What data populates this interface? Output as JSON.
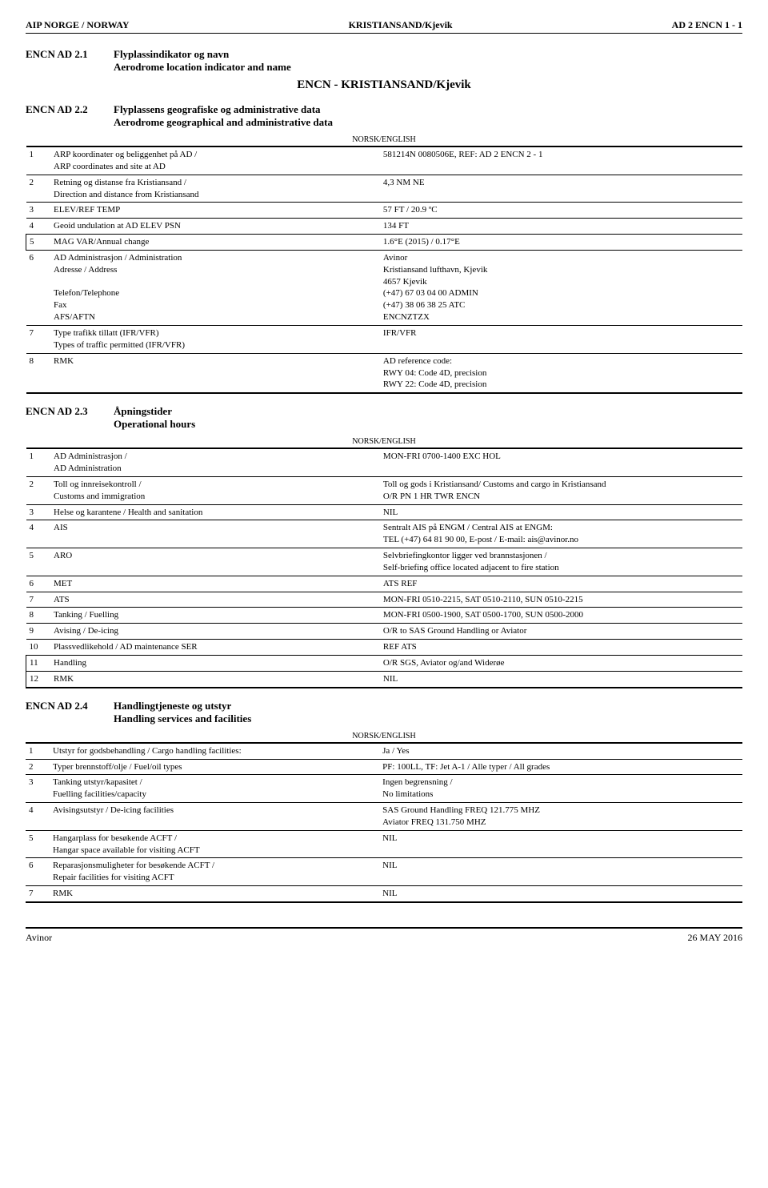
{
  "header": {
    "left": "AIP NORGE / NORWAY",
    "center": "KRISTIANSAND/Kjevik",
    "right": "AD 2 ENCN 1 - 1"
  },
  "norsk": "NORSK/ENGLISH",
  "s21": {
    "num": "ENCN AD 2.1",
    "t1": "Flyplassindikator og navn",
    "t2": "Aerodrome location indicator and name",
    "big": "ENCN - KRISTIANSAND/Kjevik"
  },
  "s22": {
    "num": "ENCN AD 2.2",
    "t1": "Flyplassens geografiske og administrative data",
    "t2": "Aerodrome geographical and administrative data",
    "rows": [
      {
        "n": "1",
        "l": "ARP koordinater og beliggenhet på AD /\nARP coordinates and site at AD",
        "r": "581214N 0080506E, REF: AD 2 ENCN 2 - 1"
      },
      {
        "n": "2",
        "l": "Retning og distanse fra Kristiansand /\nDirection and distance from Kristiansand",
        "r": "4,3 NM NE"
      },
      {
        "n": "3",
        "l": "ELEV/REF TEMP",
        "r": "57 FT / 20.9 ºC"
      },
      {
        "n": "4",
        "l": "Geoid undulation at AD ELEV PSN",
        "r": "134 FT"
      },
      {
        "n": "5",
        "l": "MAG VAR/Annual change",
        "r": "1.6°E (2015) / 0.17°E",
        "chg": true
      },
      {
        "n": "6",
        "l": "AD Administrasjon / Administration\nAdresse / Address\n\nTelefon/Telephone\nFax\nAFS/AFTN",
        "r": "Avinor\nKristiansand lufthavn, Kjevik\n4657 Kjevik\n(+47) 67 03 04 00 ADMIN\n(+47) 38 06 38 25 ATC\nENCNZTZX"
      },
      {
        "n": "7",
        "l": "Type trafikk tillatt (IFR/VFR)\nTypes of traffic permitted (IFR/VFR)",
        "r": "IFR/VFR"
      },
      {
        "n": "8",
        "l": "RMK",
        "r": "AD reference code:\nRWY 04: Code 4D, precision\nRWY 22: Code 4D, precision"
      }
    ]
  },
  "s23": {
    "num": "ENCN AD 2.3",
    "t1": "Åpningstider",
    "t2": "Operational hours",
    "rows": [
      {
        "n": "1",
        "l": "AD Administrasjon /\nAD Administration",
        "r": "MON-FRI 0700-1400 EXC HOL"
      },
      {
        "n": "2",
        "l": "Toll og innreisekontroll /\nCustoms and immigration",
        "r": "Toll og gods i Kristiansand/ Customs and cargo in Kristiansand\nO/R PN 1 HR TWR ENCN"
      },
      {
        "n": "3",
        "l": "Helse og karantene / Health and sanitation",
        "r": "NIL"
      },
      {
        "n": "4",
        "l": "AIS",
        "r": "Sentralt AIS på ENGM / Central AIS at ENGM:\nTEL (+47) 64 81 90 00, E-post / E-mail: ais@avinor.no"
      },
      {
        "n": "5",
        "l": "ARO",
        "r": "Selvbriefingkontor ligger ved brannstasjonen /\nSelf-briefing office located adjacent to fire station"
      },
      {
        "n": "6",
        "l": "MET",
        "r": "ATS REF"
      },
      {
        "n": "7",
        "l": "ATS",
        "r": "MON-FRI 0510-2215, SAT 0510-2110, SUN 0510-2215"
      },
      {
        "n": "8",
        "l": "Tanking / Fuelling",
        "r": "MON-FRI 0500-1900, SAT 0500-1700, SUN 0500-2000"
      },
      {
        "n": "9",
        "l": "Avising / De-icing",
        "r": "O/R to SAS Ground Handling or Aviator"
      },
      {
        "n": "10",
        "l": "Plassvedlikehold / AD maintenance SER",
        "r": "REF ATS"
      },
      {
        "n": "11",
        "l": "Handling",
        "r": "O/R SGS, Aviator og/and Widerøe",
        "chg": true
      },
      {
        "n": "12",
        "l": "RMK",
        "r": "NIL",
        "chg": true
      }
    ]
  },
  "s24": {
    "num": "ENCN AD 2.4",
    "t1": "Handlingtjeneste og utstyr",
    "t2": "Handling services and facilities",
    "rows": [
      {
        "n": "1",
        "l": "Utstyr for godsbehandling / Cargo handling facilities:",
        "r": "Ja / Yes"
      },
      {
        "n": "2",
        "l": "Typer brennstoff/olje / Fuel/oil types",
        "r": "PF: 100LL, TF: Jet A-1 / Alle typer / All grades"
      },
      {
        "n": "3",
        "l": "Tanking utstyr/kapasitet /\nFuelling facilities/capacity",
        "r": "Ingen begrensning /\nNo limitations"
      },
      {
        "n": "4",
        "l": "Avisingsutstyr / De-icing facilities",
        "r": "SAS Ground Handling FREQ 121.775 MHZ\nAviator FREQ 131.750 MHZ"
      },
      {
        "n": "5",
        "l": "Hangarplass for besøkende ACFT /\nHangar space available for visiting ACFT",
        "r": "NIL"
      },
      {
        "n": "6",
        "l": "Reparasjonsmuligheter for besøkende ACFT /\nRepair facilities for visiting ACFT",
        "r": "NIL"
      },
      {
        "n": "7",
        "l": "RMK",
        "r": "NIL"
      }
    ]
  },
  "footer": {
    "left": "Avinor",
    "right": "26 MAY 2016"
  }
}
